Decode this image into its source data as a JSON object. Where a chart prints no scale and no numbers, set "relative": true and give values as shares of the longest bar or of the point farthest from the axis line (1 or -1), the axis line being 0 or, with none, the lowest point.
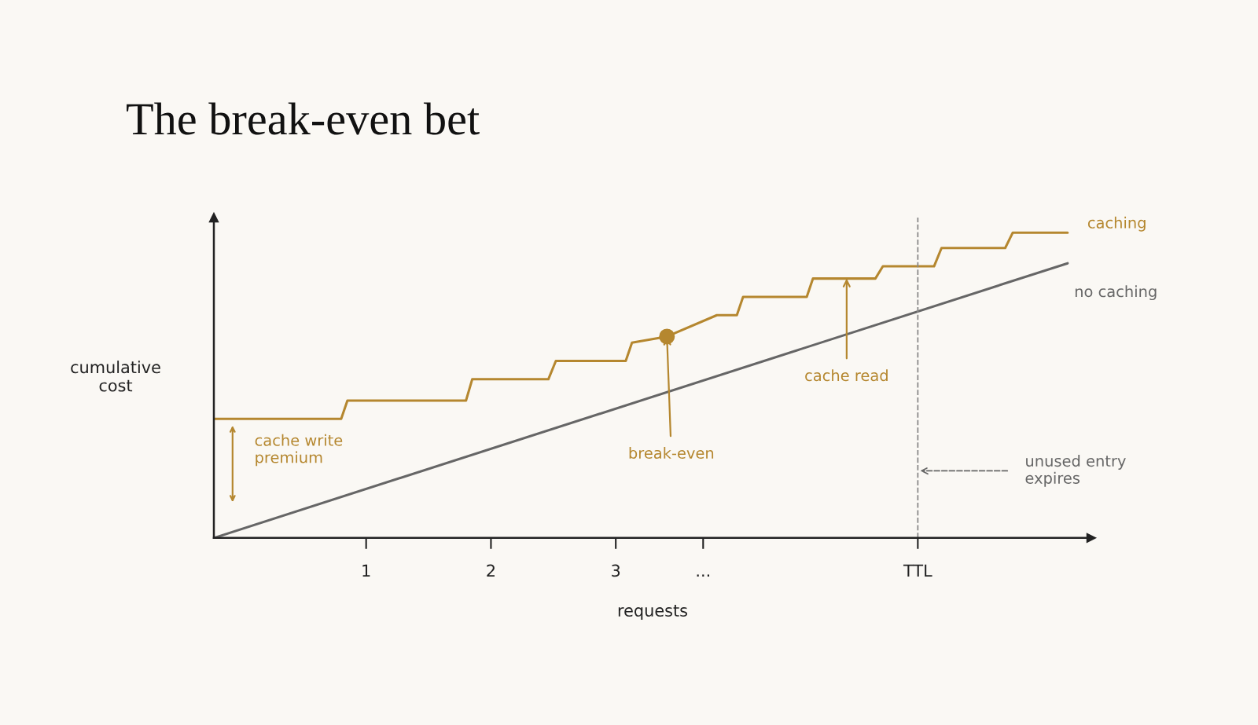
{
  "chart_data": {
    "type": "line",
    "title": "The break-even bet",
    "xlabel": "requests",
    "ylabel": "cumulative\ncost",
    "relative": true,
    "xlim": [
      -0.22,
      6.81
    ],
    "xticks": [
      1,
      2,
      3,
      {
        "value": 3.7,
        "label": "..."
      },
      {
        "value": 5.42,
        "label": "TTL"
      }
    ],
    "tick_labels": "x",
    "grid": false,
    "legend": false,
    "marker": "none",
    "line_style": "solid",
    "series": [
      {
        "name": "caching",
        "color": "#b5872f",
        "x": [
          -0.22,
          0.8,
          0.85,
          1.8,
          1.85,
          2.46,
          2.52,
          3.08,
          3.13,
          3.41,
          3.81,
          3.97,
          4.02,
          4.53,
          4.58,
          5.08,
          5.14,
          5.55,
          5.61,
          6.12,
          6.18,
          6.62
        ],
        "values": [
          0.39,
          0.39,
          0.45,
          0.45,
          0.52,
          0.52,
          0.58,
          0.58,
          0.64,
          0.66,
          0.73,
          0.73,
          0.79,
          0.79,
          0.85,
          0.85,
          0.89,
          0.89,
          0.95,
          0.95,
          1.0,
          1.0
        ]
      },
      {
        "name": "no caching",
        "color": "#666666",
        "x": [
          -0.22,
          6.62
        ],
        "values": [
          0,
          0.9
        ]
      },
      {
        "type": "scatter",
        "marker": "circle",
        "color": "#b5872f",
        "x": [
          3.41
        ],
        "values": [
          0.66
        ]
      }
    ],
    "ref_lines": [
      {
        "axis": "x",
        "value": 5.42,
        "color": "#8a8a8a",
        "line_style": "dashed"
      }
    ],
    "annotations": [
      {
        "text": "cache write\npremium",
        "x": -0.07,
        "y": 0.39
      },
      {
        "text": "break-even",
        "x": 3.41,
        "y": 0.66
      },
      {
        "text": "cache read",
        "x": 4.85,
        "y": 0.85
      },
      {
        "text": "unused entry\nexpires",
        "x": 5.42,
        "y": 0.22
      }
    ]
  }
}
